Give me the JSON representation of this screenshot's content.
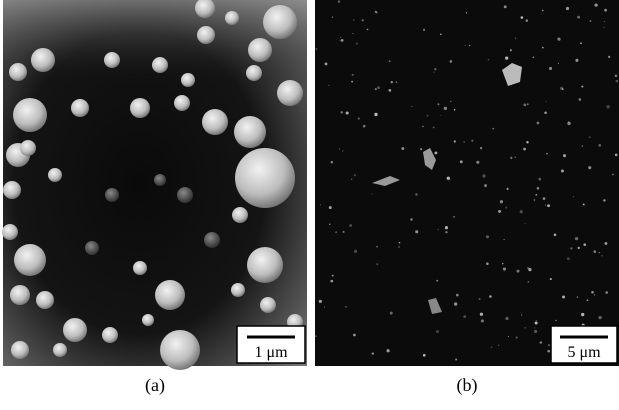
{
  "panels": [
    {
      "label": "(a)",
      "scale_bar": "1 μm"
    },
    {
      "label": "(b)",
      "scale_bar": "5 μm"
    }
  ]
}
